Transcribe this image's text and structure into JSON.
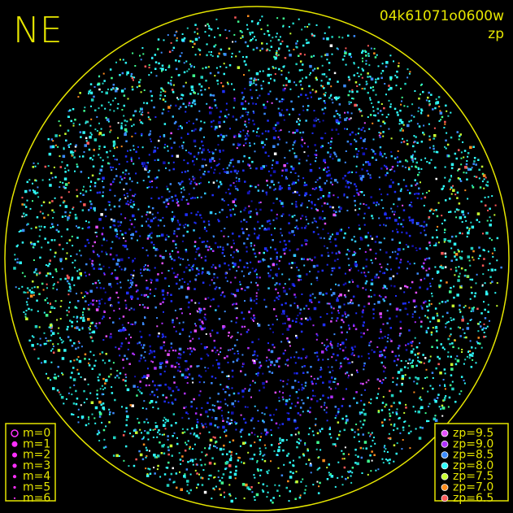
{
  "header": {
    "direction": "NE",
    "frame_id": "04k61071o0600w",
    "quantity": "zp"
  },
  "magnitude_legend": {
    "items": [
      "m=0",
      "m=1",
      "m=2",
      "m=3",
      "m=4",
      "m=5",
      "m=6"
    ]
  },
  "zp_legend": {
    "items": [
      {
        "label": "zp=9.5",
        "color": "#e650ff"
      },
      {
        "label": "zp=9.0",
        "color": "#b030ff"
      },
      {
        "label": "zp=8.5",
        "color": "#3c8cff"
      },
      {
        "label": "zp=8.0",
        "color": "#30ffff"
      },
      {
        "label": "zp=7.5",
        "color": "#c8ff30"
      },
      {
        "label": "zp=7.0",
        "color": "#ff8c1e"
      },
      {
        "label": "zp=6.5",
        "color": "#ff5a5a"
      }
    ]
  }
}
